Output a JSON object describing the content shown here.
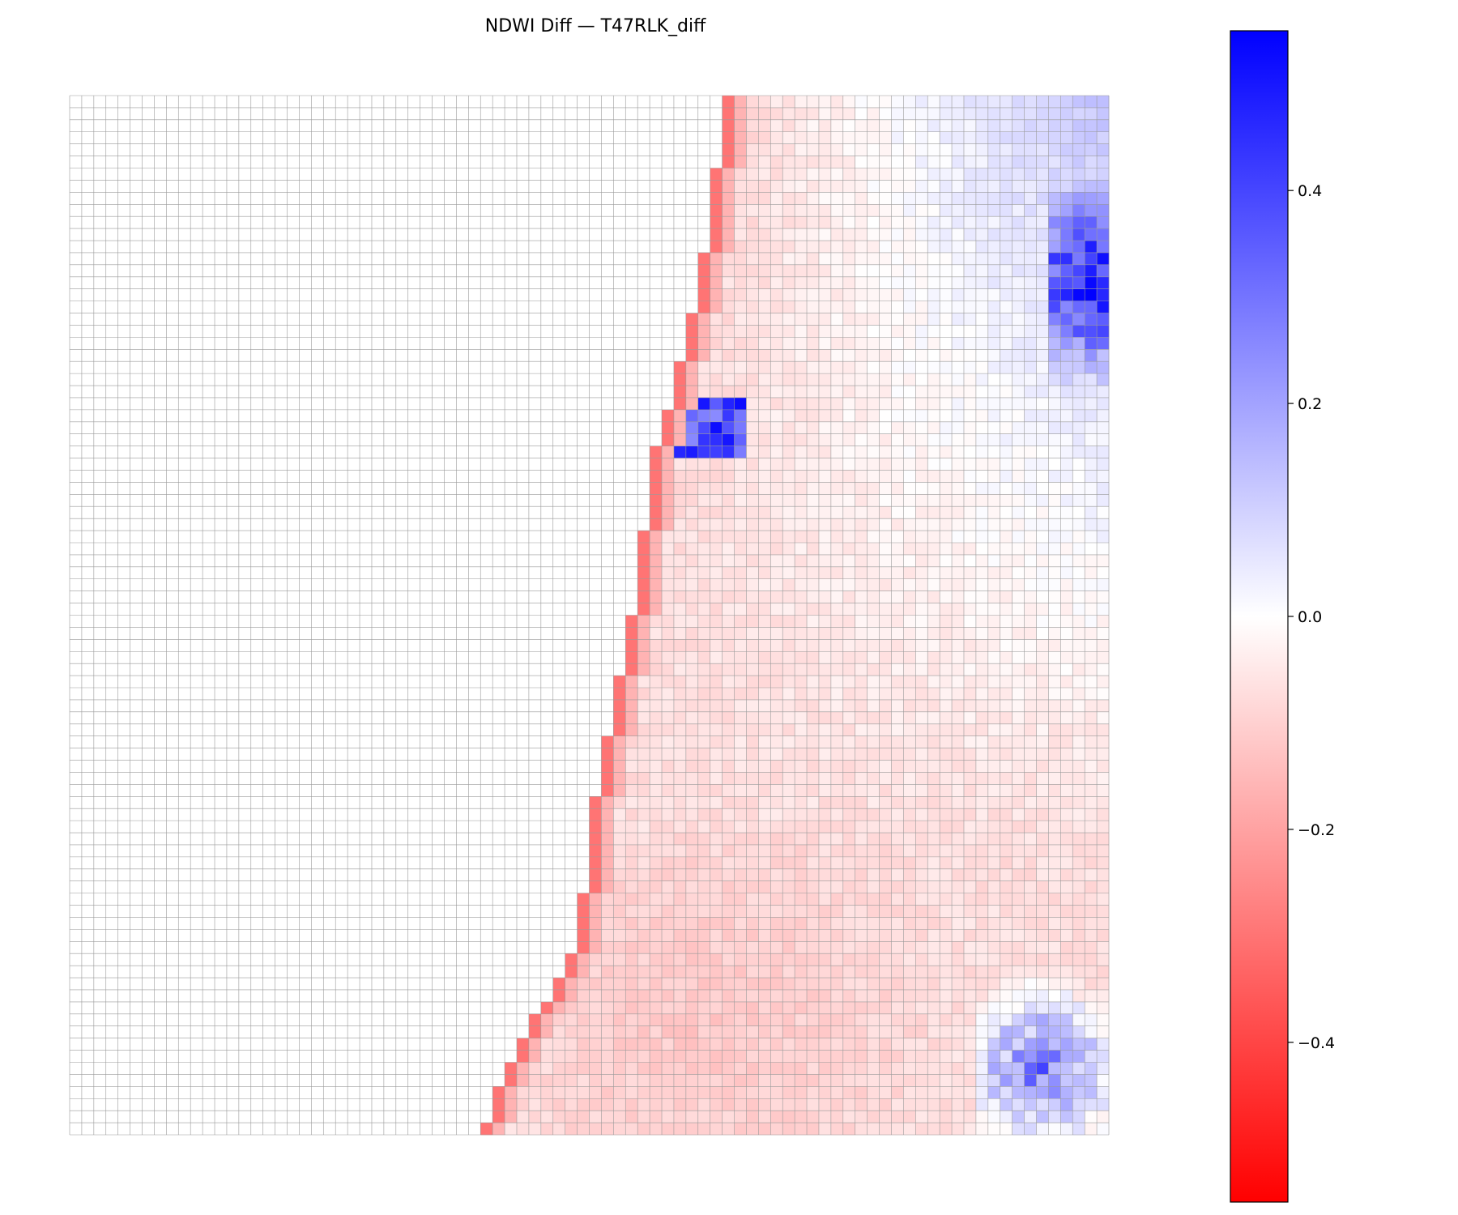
{
  "chart_data": {
    "type": "heatmap",
    "title": "NDWI Diff — T47RLK_diff",
    "xlabel": "",
    "ylabel": "",
    "grid_rows": 86,
    "grid_cols": 86,
    "colormap": "bwr (reversed: red = negative, white = zero, blue = positive)",
    "value_range": [
      -0.55,
      0.55
    ],
    "nodata_color": "#ffffff",
    "gridline_color": "#9a9a9a",
    "colorbar": {
      "ticks": [
        0.4,
        0.2,
        0.0,
        -0.2,
        -0.4
      ],
      "tick_labels": [
        "0.4",
        "0.2",
        "0.0",
        "−0.2",
        "−0.4"
      ]
    },
    "valid_region_boundary": [
      {
        "row": 0,
        "col": 54
      },
      {
        "row": 10,
        "col": 53
      },
      {
        "row": 20,
        "col": 51
      },
      {
        "row": 30,
        "col": 48
      },
      {
        "row": 40,
        "col": 47
      },
      {
        "row": 50,
        "col": 45
      },
      {
        "row": 60,
        "col": 43
      },
      {
        "row": 70,
        "col": 42
      },
      {
        "row": 80,
        "col": 36
      },
      {
        "row": 86,
        "col": 34
      }
    ],
    "regions": {
      "upper_right_blue_patch_max": 0.5,
      "edge_strip_red": -0.3,
      "center_left_interior": -0.08,
      "center_right_interior": 0.08,
      "lower_center_interior": -0.1,
      "lower_right_blue_patch_max": 0.45
    }
  },
  "colors": {
    "red_end": "#ff0000",
    "white_mid": "#ffffff",
    "blue_end": "#0000ff"
  }
}
